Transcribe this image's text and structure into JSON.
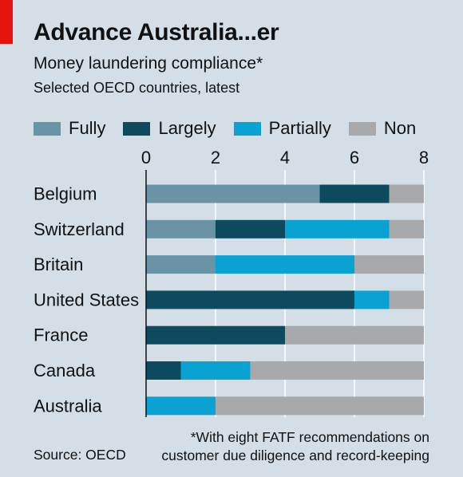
{
  "header": {
    "title": "Advance Australia...er",
    "subtitle": "Money laundering compliance*",
    "subsubtitle": "Selected OECD countries, latest"
  },
  "legend": [
    {
      "label": "Fully",
      "color": "#6a93a5"
    },
    {
      "label": "Largely",
      "color": "#0e4a5e"
    },
    {
      "label": "Partially",
      "color": "#0aa2d3"
    },
    {
      "label": "Non",
      "color": "#a7a9aa"
    }
  ],
  "footer": {
    "footnote_line1": "*With eight FATF recommendations on",
    "footnote_line2": "customer due diligence and record-keeping",
    "source": "Source: OECD"
  },
  "colors": {
    "background": "#d3dee6",
    "accent": "#e3120b"
  },
  "chart_data": {
    "type": "bar",
    "orientation": "horizontal",
    "stacked": true,
    "categories": [
      "Belgium",
      "Switzerland",
      "Britain",
      "United States",
      "France",
      "Canada",
      "Australia"
    ],
    "series": [
      {
        "name": "Fully",
        "values": [
          5,
          2,
          2,
          0,
          0,
          0,
          0
        ]
      },
      {
        "name": "Largely",
        "values": [
          2,
          2,
          0,
          6,
          4,
          1,
          0
        ]
      },
      {
        "name": "Partially",
        "values": [
          0,
          3,
          4,
          1,
          0,
          2,
          2
        ]
      },
      {
        "name": "Non",
        "values": [
          1,
          1,
          2,
          1,
          4,
          5,
          6
        ]
      }
    ],
    "xlim": [
      0,
      8
    ],
    "xticks": [
      0,
      2,
      4,
      6,
      8
    ],
    "axis_position": "top",
    "grid": true
  }
}
